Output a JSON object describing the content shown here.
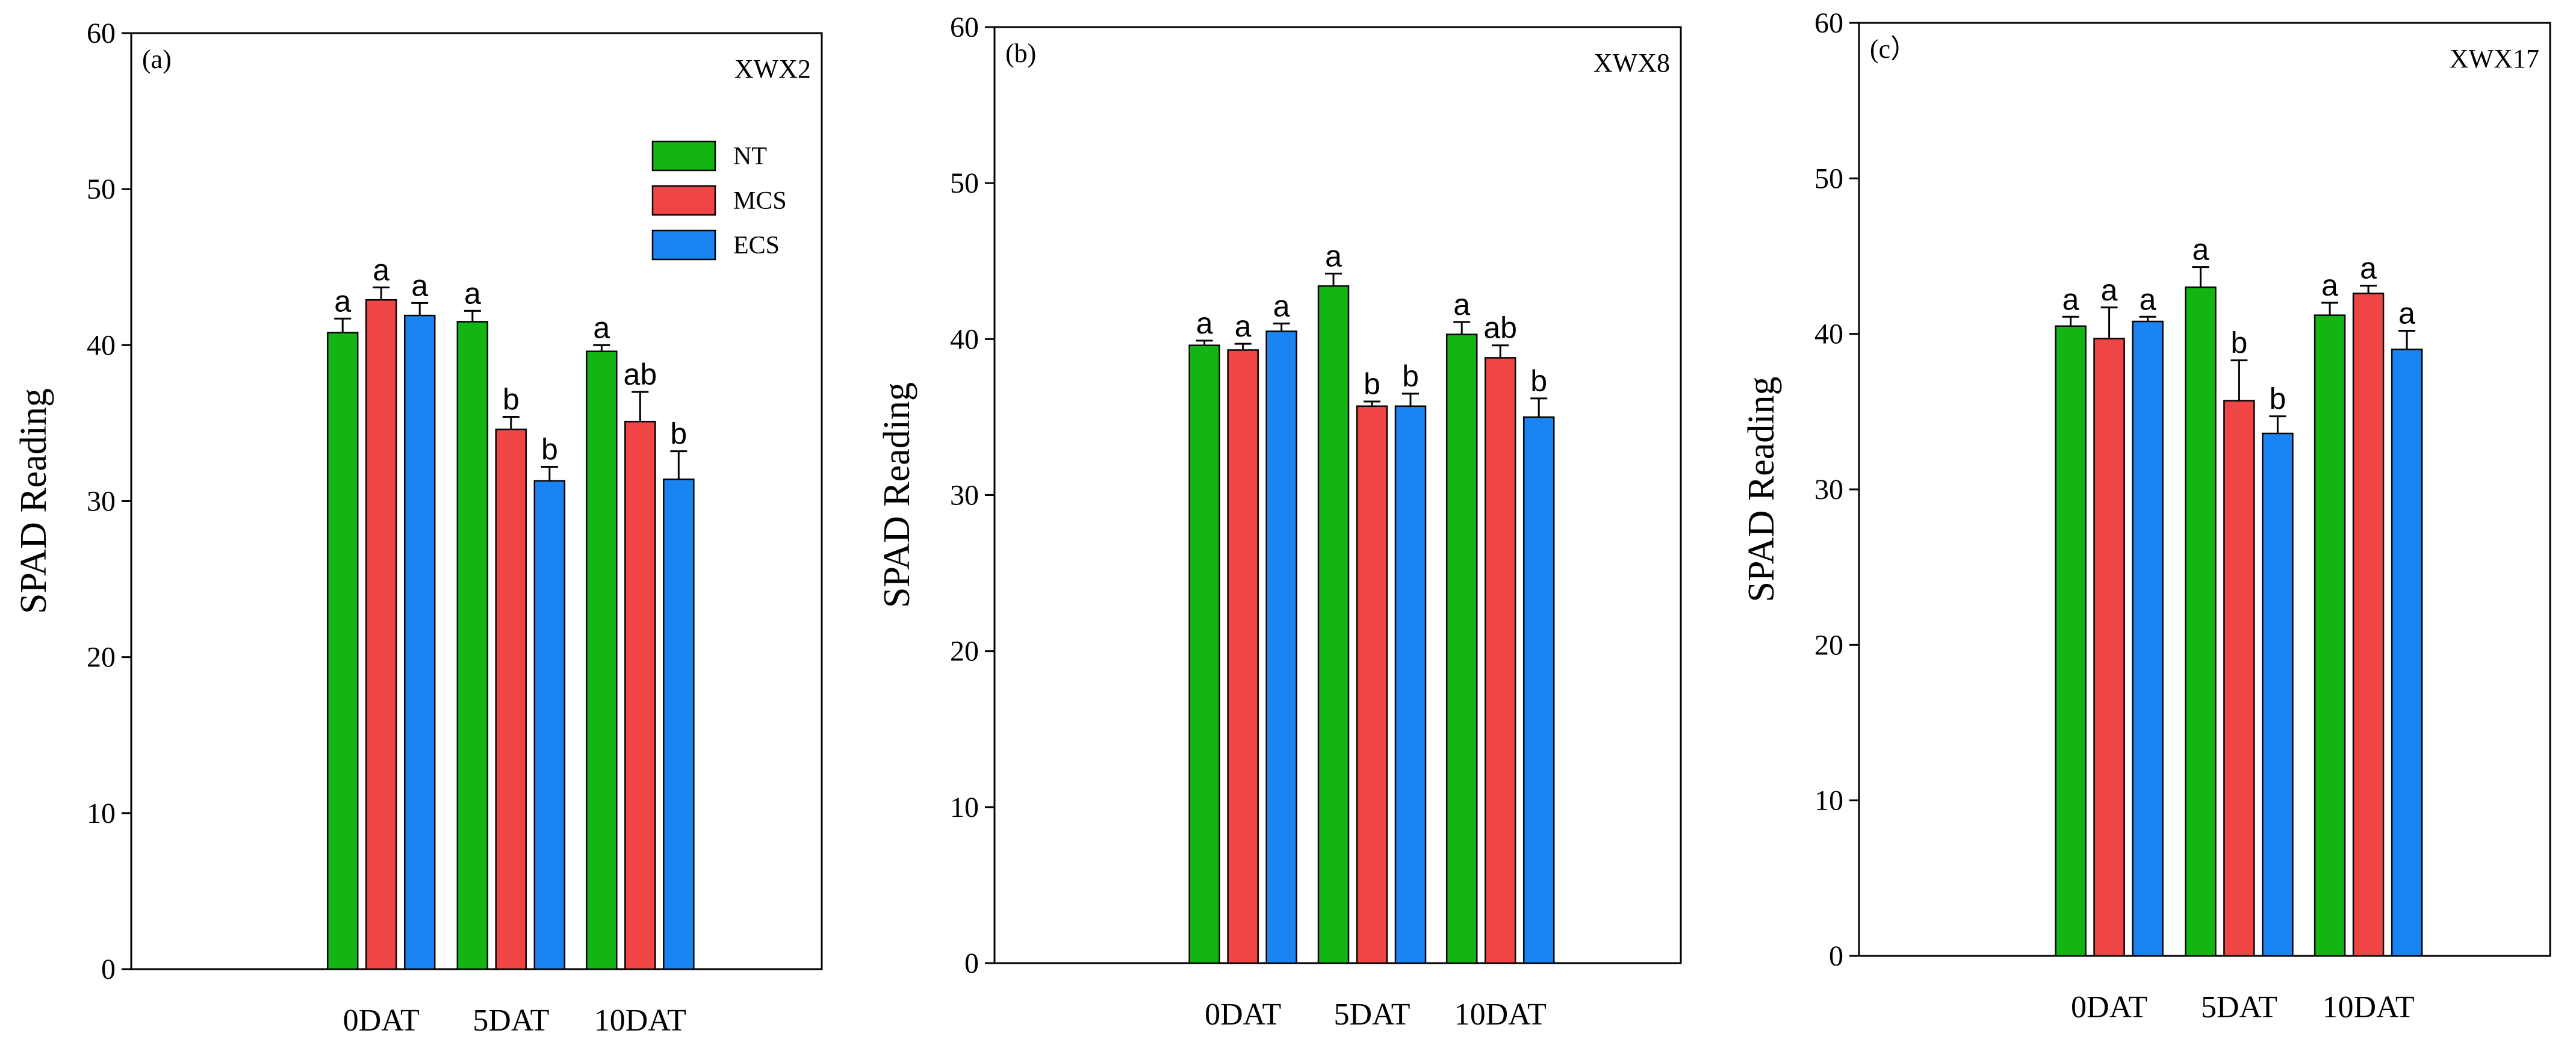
{
  "chart_data": [
    {
      "type": "bar",
      "panel_label": "(a)",
      "title": "XWX2",
      "ylabel": "SPAD Reading",
      "xlabel": "",
      "ylim": [
        0,
        60
      ],
      "yticks": [
        0,
        10,
        20,
        30,
        40,
        50,
        60
      ],
      "categories": [
        "0DAT",
        "5DAT",
        "10DAT"
      ],
      "legend": {
        "visible": true,
        "placement": "top-right"
      },
      "series": [
        {
          "name": "NT",
          "color": "#12b512",
          "values": [
            40.8,
            41.5,
            39.6
          ],
          "errors": [
            0.9,
            0.7,
            0.4
          ],
          "significance": [
            "a",
            "a",
            "a"
          ]
        },
        {
          "name": "MCS",
          "color": "#f04545",
          "values": [
            42.9,
            34.6,
            35.1
          ],
          "errors": [
            0.8,
            0.8,
            1.9
          ],
          "significance": [
            "a",
            "b",
            "ab"
          ]
        },
        {
          "name": "ECS",
          "color": "#1a84f2",
          "values": [
            41.9,
            31.3,
            31.4
          ],
          "errors": [
            0.8,
            0.9,
            1.8
          ],
          "significance": [
            "a",
            "b",
            "b"
          ]
        }
      ]
    },
    {
      "type": "bar",
      "panel_label": "(b)",
      "title": "XWX8",
      "ylabel": "SPAD Reading",
      "xlabel": "",
      "ylim": [
        0,
        60
      ],
      "yticks": [
        0,
        10,
        20,
        30,
        40,
        50,
        60
      ],
      "categories": [
        "0DAT",
        "5DAT",
        "10DAT"
      ],
      "legend": {
        "visible": false
      },
      "series": [
        {
          "name": "NT",
          "color": "#12b512",
          "values": [
            39.6,
            43.4,
            40.3
          ],
          "errors": [
            0.3,
            0.8,
            0.8
          ],
          "significance": [
            "a",
            "a",
            "a"
          ]
        },
        {
          "name": "MCS",
          "color": "#f04545",
          "values": [
            39.3,
            35.7,
            38.8
          ],
          "errors": [
            0.4,
            0.3,
            0.8
          ],
          "significance": [
            "a",
            "b",
            "ab"
          ]
        },
        {
          "name": "ECS",
          "color": "#1a84f2",
          "values": [
            40.5,
            35.7,
            35.0
          ],
          "errors": [
            0.5,
            0.8,
            1.2
          ],
          "significance": [
            "a",
            "b",
            "b"
          ]
        }
      ]
    },
    {
      "type": "bar",
      "panel_label": "(c）",
      "title": "XWX17",
      "ylabel": "SPAD Reading",
      "xlabel": "",
      "ylim": [
        0,
        60
      ],
      "yticks": [
        0,
        10,
        20,
        30,
        40,
        50,
        60
      ],
      "categories": [
        "0DAT",
        "5DAT",
        "10DAT"
      ],
      "legend": {
        "visible": false
      },
      "series": [
        {
          "name": "NT",
          "color": "#12b512",
          "values": [
            40.5,
            43.0,
            41.2
          ],
          "errors": [
            0.6,
            1.3,
            0.8
          ],
          "significance": [
            "a",
            "a",
            "a"
          ]
        },
        {
          "name": "MCS",
          "color": "#f04545",
          "values": [
            39.7,
            35.7,
            42.6
          ],
          "errors": [
            2.0,
            2.6,
            0.5
          ],
          "significance": [
            "a",
            "b",
            "a"
          ]
        },
        {
          "name": "ECS",
          "color": "#1a84f2",
          "values": [
            40.8,
            33.6,
            39.0
          ],
          "errors": [
            0.3,
            1.1,
            1.2
          ],
          "significance": [
            "a",
            "b",
            "a"
          ]
        }
      ]
    }
  ]
}
